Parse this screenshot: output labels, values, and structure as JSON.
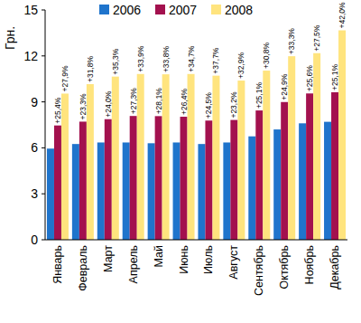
{
  "chart_data": {
    "type": "bar",
    "y_label": "Грн.",
    "categories": [
      "Январь",
      "Февраль",
      "Март",
      "Апрель",
      "Май",
      "Июнь",
      "Июль",
      "Август",
      "Сентябрь",
      "Октябрь",
      "Ноябрь",
      "Декабрь"
    ],
    "series": [
      {
        "name": "2006",
        "color": "#1f74cc",
        "values": [
          5.95,
          6.25,
          6.35,
          6.35,
          6.3,
          6.35,
          6.25,
          6.35,
          6.75,
          7.2,
          7.6,
          7.7
        ]
      },
      {
        "name": "2007",
        "color": "#a3114e",
        "values": [
          7.46,
          7.71,
          7.87,
          8.08,
          8.07,
          8.03,
          7.78,
          7.82,
          8.44,
          8.99,
          9.55,
          9.63
        ],
        "growth_labels": [
          "+25,4%",
          "+23,3%",
          "+24,0%",
          "+27,3%",
          "+28,1%",
          "+26,4%",
          "+24,5%",
          "+23,2%",
          "+25,1%",
          "+24,9%",
          "+25,6%",
          "+25,1%"
        ]
      },
      {
        "name": "2008",
        "color": "#ffe47e",
        "values": [
          9.54,
          10.16,
          10.65,
          10.82,
          10.8,
          10.82,
          10.71,
          10.39,
          11.04,
          11.98,
          12.18,
          13.67
        ],
        "growth_labels": [
          "+27,9%",
          "+31,8%",
          "+35,3%",
          "+33,9%",
          "+33,8%",
          "+34,7%",
          "+37,7%",
          "+32,9%",
          "+30,8%",
          "+33,3%",
          "+27,5%",
          "+42,0%"
        ]
      }
    ],
    "ylim": [
      0,
      15
    ],
    "yticks": [
      0,
      3,
      6,
      9,
      12,
      15
    ],
    "grid": false,
    "legend": "top"
  }
}
